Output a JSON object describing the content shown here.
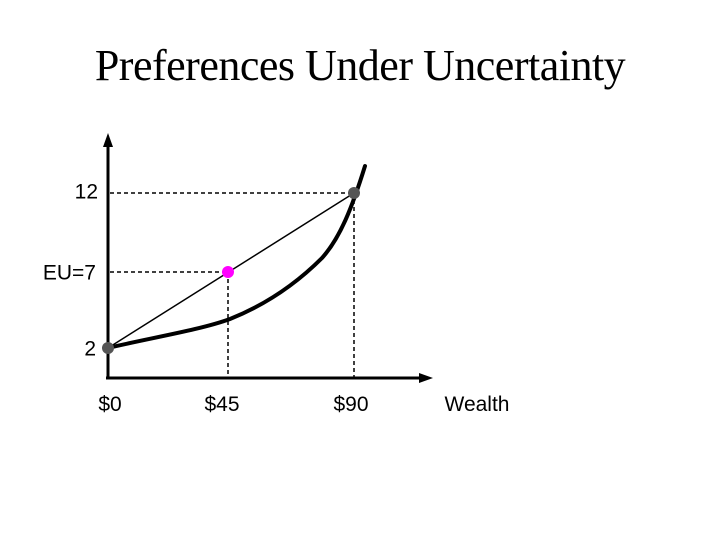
{
  "title": "Preferences Under Uncertainty",
  "y_labels": {
    "top": "12",
    "mid": "EU=7",
    "bottom": "2"
  },
  "x_labels": {
    "zero": "$0",
    "mid": "$45",
    "high": "$90",
    "axis": "Wealth"
  },
  "points": {
    "low": {
      "wealth": 0,
      "utility": 2
    },
    "high": {
      "wealth": 90,
      "utility": 12
    },
    "expected": {
      "wealth": 45,
      "utility": 7
    }
  },
  "colors": {
    "points": "#555555",
    "expected_point": "#ff00ff",
    "line": "#000000"
  }
}
